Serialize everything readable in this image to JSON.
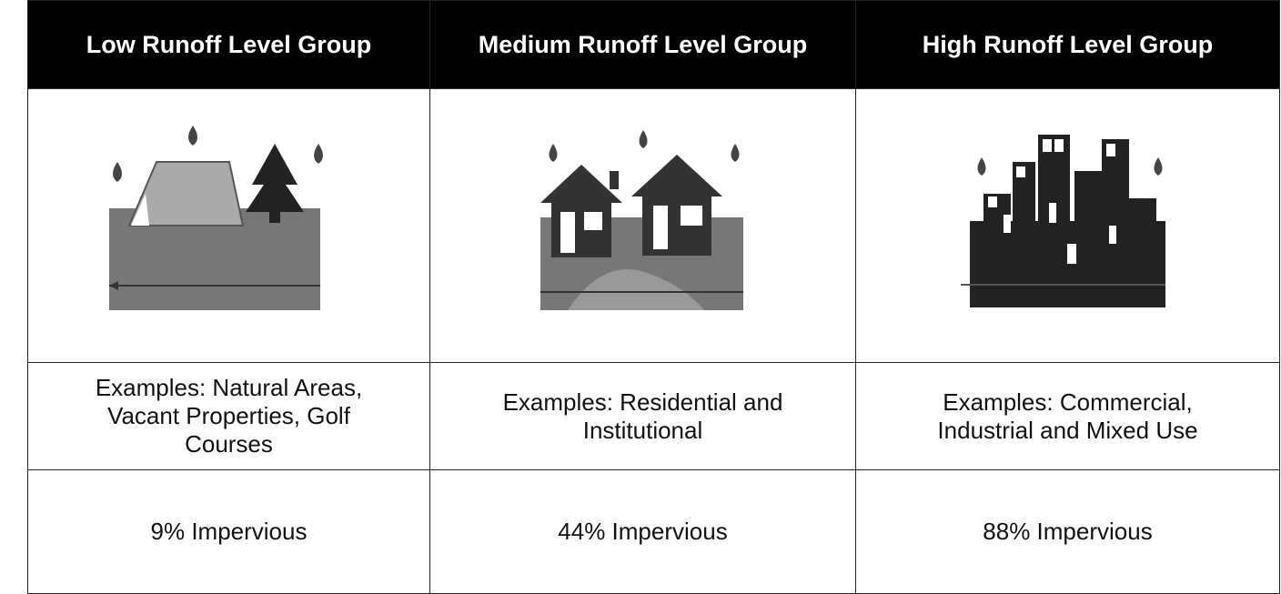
{
  "table": {
    "header": [
      "Low Runoff Level Group",
      "Medium Runoff Level Group",
      "High Runoff Level Group"
    ],
    "rows": [
      [
        "Examples: Natural Areas, Vacant Properties, Golf Courses",
        "Examples: Residential and Institutional",
        "Examples: Commercial, Industrial and Mixed Use"
      ],
      [
        "9% Impervious",
        "44% Impervious",
        "88% Impervious"
      ]
    ]
  }
}
